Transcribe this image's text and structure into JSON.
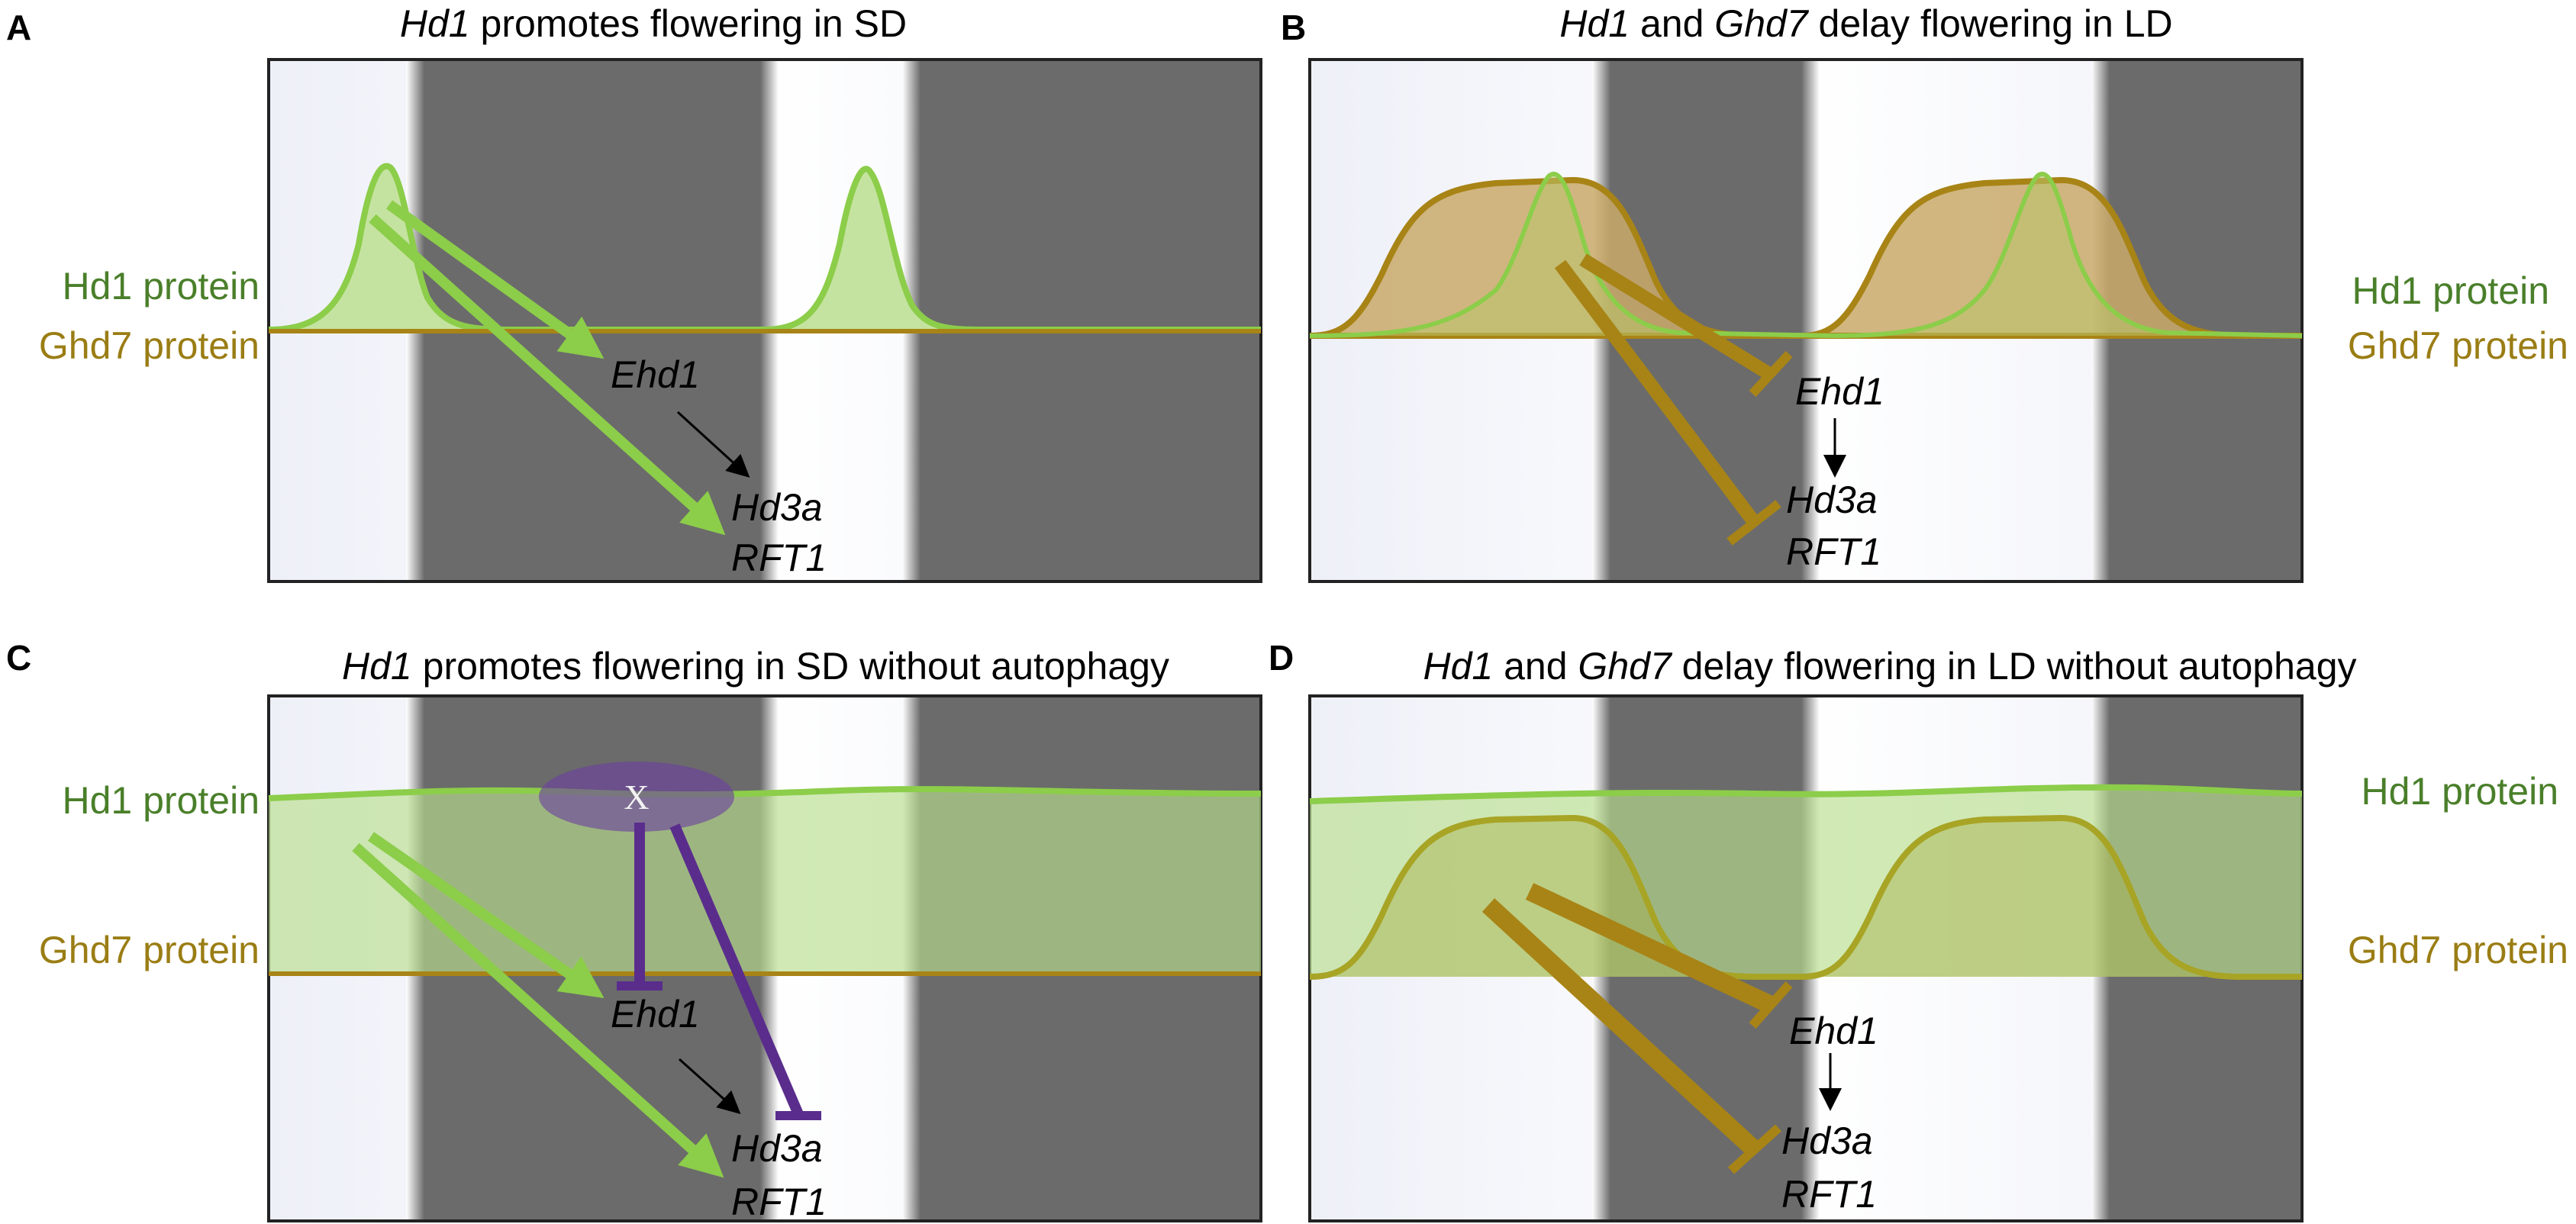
{
  "panels": {
    "A": {
      "letter": "A",
      "title_italic": "Hd1",
      "title_rest": " promotes flowering in SD",
      "hd1_label": "Hd1 protein",
      "ghd7_label": "Ghd7 protein",
      "gene1": "Ehd1",
      "gene2": "Hd3a",
      "gene3": "RFT1"
    },
    "B": {
      "letter": "B",
      "title_italic1": "Hd1",
      "title_mid": " and ",
      "title_italic2": "Ghd7",
      "title_rest": " delay flowering in LD",
      "hd1_label": "Hd1 protein",
      "ghd7_label": "Ghd7 protein",
      "gene1": "Ehd1",
      "gene2": "Hd3a",
      "gene3": "RFT1"
    },
    "C": {
      "letter": "C",
      "title_italic": "Hd1",
      "title_rest": " promotes flowering in SD without autophagy",
      "hd1_label": "Hd1 protein",
      "ghd7_label": "Ghd7 protein",
      "x_mark": "X",
      "gene1": "Ehd1",
      "gene2": "Hd3a",
      "gene3": "RFT1"
    },
    "D": {
      "letter": "D",
      "title_italic1": "Hd1",
      "title_mid": " and ",
      "title_italic2": "Ghd7",
      "title_rest": " delay flowering in LD without autophagy",
      "hd1_label": "Hd1 protein",
      "ghd7_label": "Ghd7 protein",
      "gene1": "Ehd1",
      "gene2": "Hd3a",
      "gene3": "RFT1"
    }
  },
  "colors": {
    "hd1_line": "#8ccd4a",
    "hd1_fill": "#c5e3a0",
    "ghd7_line": "#a88416",
    "ghd7_fill": "#c9a96a",
    "night": "#6b6b6b",
    "day": "#f4f5fa",
    "repressor_x": "#5a2d8c",
    "activator_arrow": "#8ccd4a",
    "repressor_ghd7": "#a88416"
  }
}
